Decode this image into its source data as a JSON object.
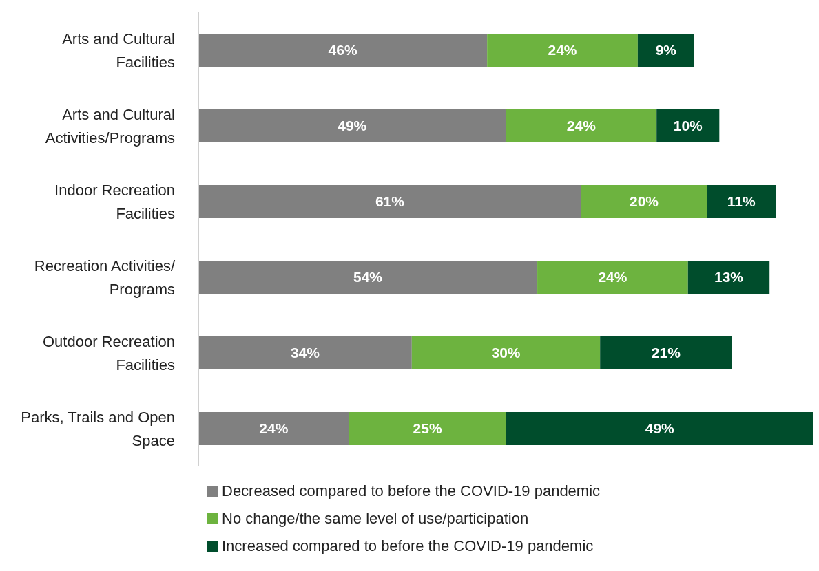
{
  "chart_data": {
    "type": "bar",
    "orientation": "horizontal",
    "stacked": true,
    "legend": "bottom",
    "categories": [
      "Arts and Cultural Facilities",
      "Arts and Cultural Activities/Programs",
      "Indoor Recreation Facilities",
      "Recreation Activities/ Programs",
      "Outdoor Recreation Facilities",
      "Parks, Trails and Open Space"
    ],
    "series": [
      {
        "name": "Decreased compared to before the COVID-19 pandemic",
        "color": "#808080",
        "values": [
          46,
          49,
          61,
          54,
          34,
          24
        ],
        "value_labels": [
          "46%",
          "49%",
          "61%",
          "54%",
          "34%",
          "24%"
        ]
      },
      {
        "name": "No change/the same level of use/participation",
        "color": "#6db33f",
        "values": [
          24,
          24,
          20,
          24,
          30,
          25
        ],
        "value_labels": [
          "24%",
          "24%",
          "20%",
          "24%",
          "30%",
          "25%"
        ]
      },
      {
        "name": "Increased compared to before the COVID-19 pandemic",
        "color": "#004d2c",
        "values": [
          9,
          10,
          11,
          13,
          21,
          49
        ],
        "value_labels": [
          "9%",
          "10%",
          "11%",
          "13%",
          "21%",
          "49%"
        ]
      }
    ]
  }
}
